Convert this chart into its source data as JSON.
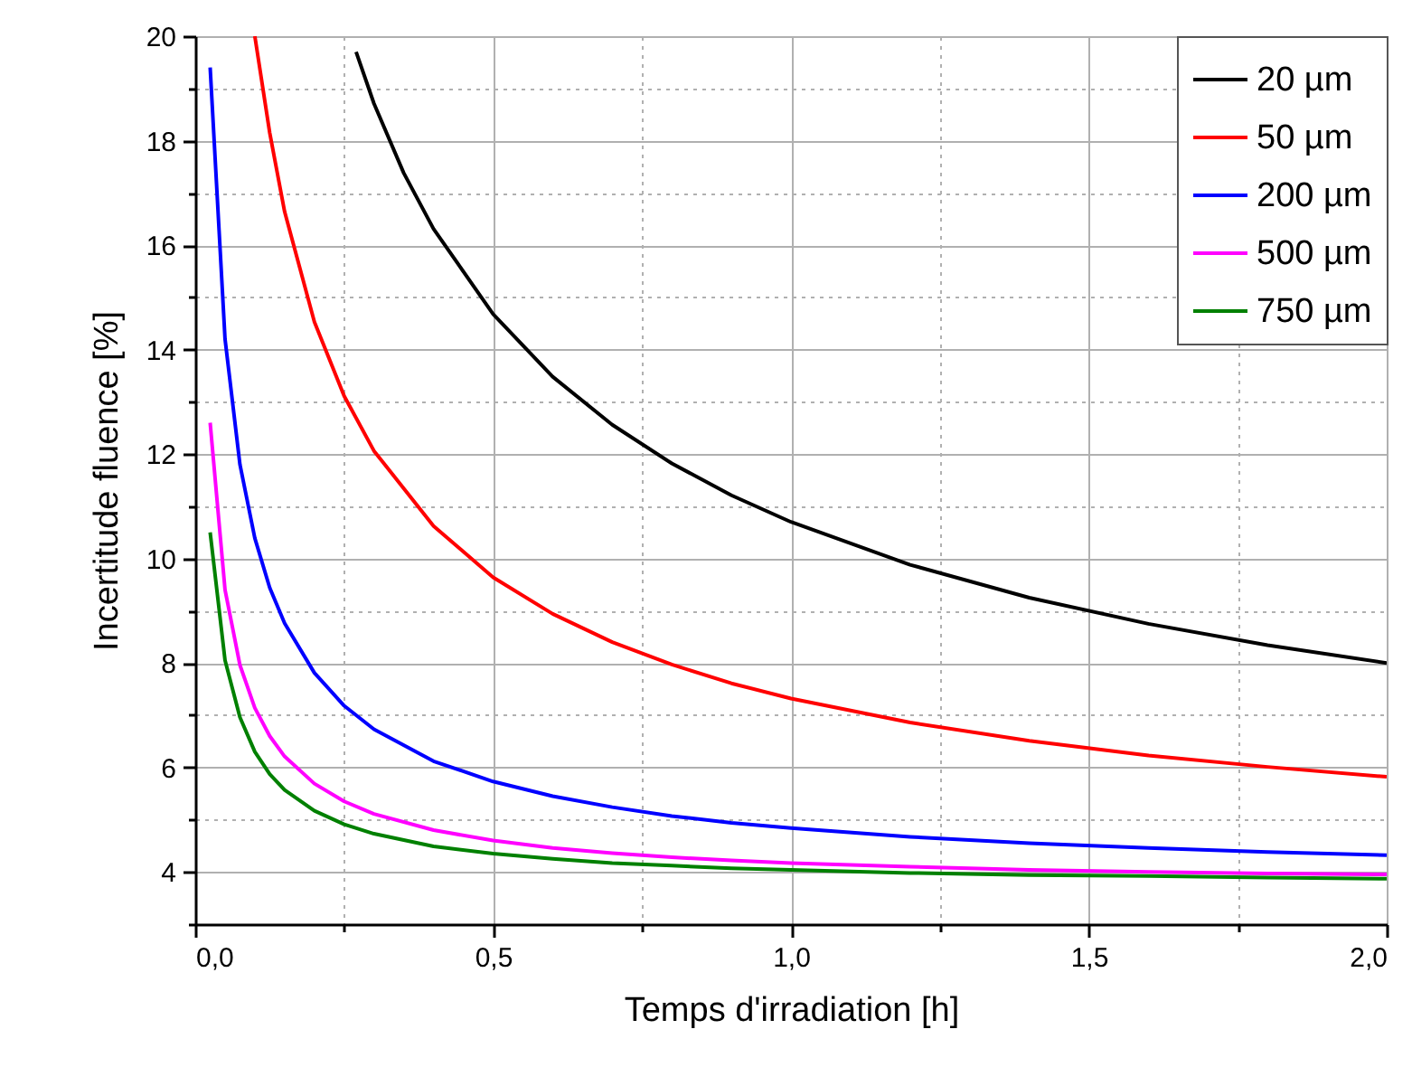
{
  "chart_data": {
    "type": "line",
    "xlabel": "Temps d'irradiation [h]",
    "ylabel": "Incertitude fluence [%]",
    "xlim": [
      0,
      2
    ],
    "ylim": [
      3,
      20
    ],
    "xticks": [
      {
        "value": 0,
        "label": "0,0"
      },
      {
        "value": 0.25,
        "label": null
      },
      {
        "value": 0.5,
        "label": "0,5"
      },
      {
        "value": 0.75,
        "label": null
      },
      {
        "value": 1,
        "label": "1,0"
      },
      {
        "value": 1.25,
        "label": null
      },
      {
        "value": 1.5,
        "label": "1,5"
      },
      {
        "value": 1.75,
        "label": null
      },
      {
        "value": 2,
        "label": "2,0"
      }
    ],
    "yticks": [
      {
        "value": 3,
        "label": null
      },
      4,
      {
        "value": 5,
        "label": null
      },
      6,
      {
        "value": 7,
        "label": null
      },
      8,
      {
        "value": 9,
        "label": null
      },
      10,
      {
        "value": 11,
        "label": null
      },
      12,
      {
        "value": 13,
        "label": null
      },
      14,
      {
        "value": 15,
        "label": null
      },
      16,
      {
        "value": 17,
        "label": null
      },
      18,
      {
        "value": 19,
        "label": null
      },
      20
    ],
    "grid": true,
    "legend": "top right",
    "line_style": "solid",
    "series": [
      {
        "name": "20 µm",
        "color": "#000000",
        "x": [
          0.27,
          0.3,
          0.35,
          0.4,
          0.5,
          0.6,
          0.7,
          0.8,
          0.9,
          1.0,
          1.2,
          1.4,
          1.6,
          1.8,
          2.0
        ],
        "values": [
          19.7,
          18.71,
          17.38,
          16.31,
          14.68,
          13.48,
          12.56,
          11.82,
          11.21,
          10.7,
          9.88,
          9.25,
          8.75,
          8.34,
          8.0
        ]
      },
      {
        "name": "50 µm",
        "color": "#ff0000",
        "x": [
          0.1,
          0.125,
          0.15,
          0.2,
          0.25,
          0.3,
          0.4,
          0.5,
          0.6,
          0.7,
          0.8,
          0.9,
          1.0,
          1.2,
          1.4,
          1.6,
          1.8,
          2.0
        ],
        "values": [
          20.0,
          18.15,
          16.64,
          14.53,
          13.11,
          12.06,
          10.62,
          9.64,
          8.94,
          8.4,
          7.97,
          7.61,
          7.32,
          6.86,
          6.51,
          6.23,
          6.01,
          5.82
        ]
      },
      {
        "name": "200 µm",
        "color": "#0000ff",
        "x": [
          0.025,
          0.05,
          0.075,
          0.1,
          0.125,
          0.15,
          0.2,
          0.25,
          0.3,
          0.4,
          0.5,
          0.6,
          0.7,
          0.8,
          0.9,
          1.0,
          1.2,
          1.4,
          1.6,
          1.8,
          2.0
        ],
        "values": [
          19.4,
          14.2,
          11.8,
          10.39,
          9.44,
          8.76,
          7.81,
          7.18,
          6.73,
          6.12,
          5.73,
          5.45,
          5.24,
          5.07,
          4.94,
          4.84,
          4.67,
          4.55,
          4.46,
          4.38,
          4.32
        ]
      },
      {
        "name": "500 µm",
        "color": "#ff00ff",
        "x": [
          0.025,
          0.05,
          0.075,
          0.1,
          0.125,
          0.15,
          0.2,
          0.25,
          0.3,
          0.4,
          0.5,
          0.6,
          0.7,
          0.8,
          0.9,
          1.0,
          1.2,
          1.4,
          1.6,
          1.8,
          2.0
        ],
        "values": [
          12.6,
          9.4,
          7.96,
          7.14,
          6.6,
          6.21,
          5.69,
          5.35,
          5.11,
          4.8,
          4.6,
          4.46,
          4.36,
          4.28,
          4.22,
          4.17,
          4.1,
          4.04,
          4.0,
          3.97,
          3.95
        ]
      },
      {
        "name": "750 µm",
        "color": "#008000",
        "x": [
          0.025,
          0.05,
          0.075,
          0.1,
          0.125,
          0.15,
          0.2,
          0.25,
          0.3,
          0.4,
          0.5,
          0.6,
          0.7,
          0.8,
          0.9,
          1.0,
          1.2,
          1.4,
          1.6,
          1.8,
          2.0
        ],
        "values": [
          10.5,
          8.05,
          6.96,
          6.3,
          5.87,
          5.57,
          5.17,
          4.91,
          4.73,
          4.49,
          4.35,
          4.25,
          4.17,
          4.12,
          4.07,
          4.04,
          3.98,
          3.94,
          3.92,
          3.89,
          3.87
        ]
      }
    ]
  }
}
